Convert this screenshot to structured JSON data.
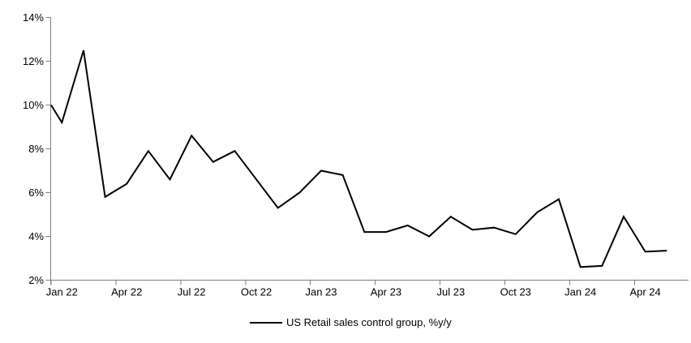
{
  "chart_data": {
    "type": "line",
    "title": "",
    "xlabel": "",
    "ylabel": "",
    "x": [
      "Jan 22",
      "Feb 22",
      "Mar 22",
      "Apr 22",
      "May 22",
      "Jun 22",
      "Jul 22",
      "Aug 22",
      "Sep 22",
      "Oct 22",
      "Nov 22",
      "Dec 22",
      "Jan 23",
      "Feb 23",
      "Mar 23",
      "Apr 23",
      "May 23",
      "Jun 23",
      "Jul 23",
      "Aug 23",
      "Sep 23",
      "Oct 23",
      "Nov 23",
      "Dec 23",
      "Jan 24",
      "Feb 24",
      "Mar 24",
      "Apr 24",
      "May 24"
    ],
    "series": [
      {
        "name": "US Retail sales control group, %y/y",
        "color": "#000000",
        "start_edge_value": 10.0,
        "values": [
          9.2,
          12.5,
          5.8,
          6.4,
          7.9,
          6.6,
          8.6,
          7.4,
          7.9,
          6.6,
          5.3,
          6.0,
          7.0,
          6.8,
          4.2,
          4.2,
          4.5,
          4.0,
          4.9,
          4.3,
          4.4,
          4.1,
          5.1,
          5.7,
          2.6,
          2.65,
          4.9,
          3.3,
          3.35
        ]
      }
    ],
    "y_axis": {
      "min": 2,
      "max": 14,
      "step": 2,
      "tick_labels": [
        "2%",
        "4%",
        "6%",
        "8%",
        "10%",
        "12%",
        "14%"
      ]
    },
    "x_axis": {
      "tick_labels": [
        "Jan 22",
        "Apr 22",
        "Jul 22",
        "Oct 22",
        "Jan 23",
        "Apr 23",
        "Jul 23",
        "Oct 23",
        "Jan 24",
        "Apr 24"
      ],
      "label_interval_months": 3
    },
    "legend": {
      "position": "bottom-center",
      "entries": [
        {
          "label": "US Retail sales control group, %y/y",
          "color": "#000000"
        }
      ]
    },
    "grid": false,
    "axis_color": "#808080",
    "line_color": "#000000",
    "background_color": "#ffffff"
  }
}
